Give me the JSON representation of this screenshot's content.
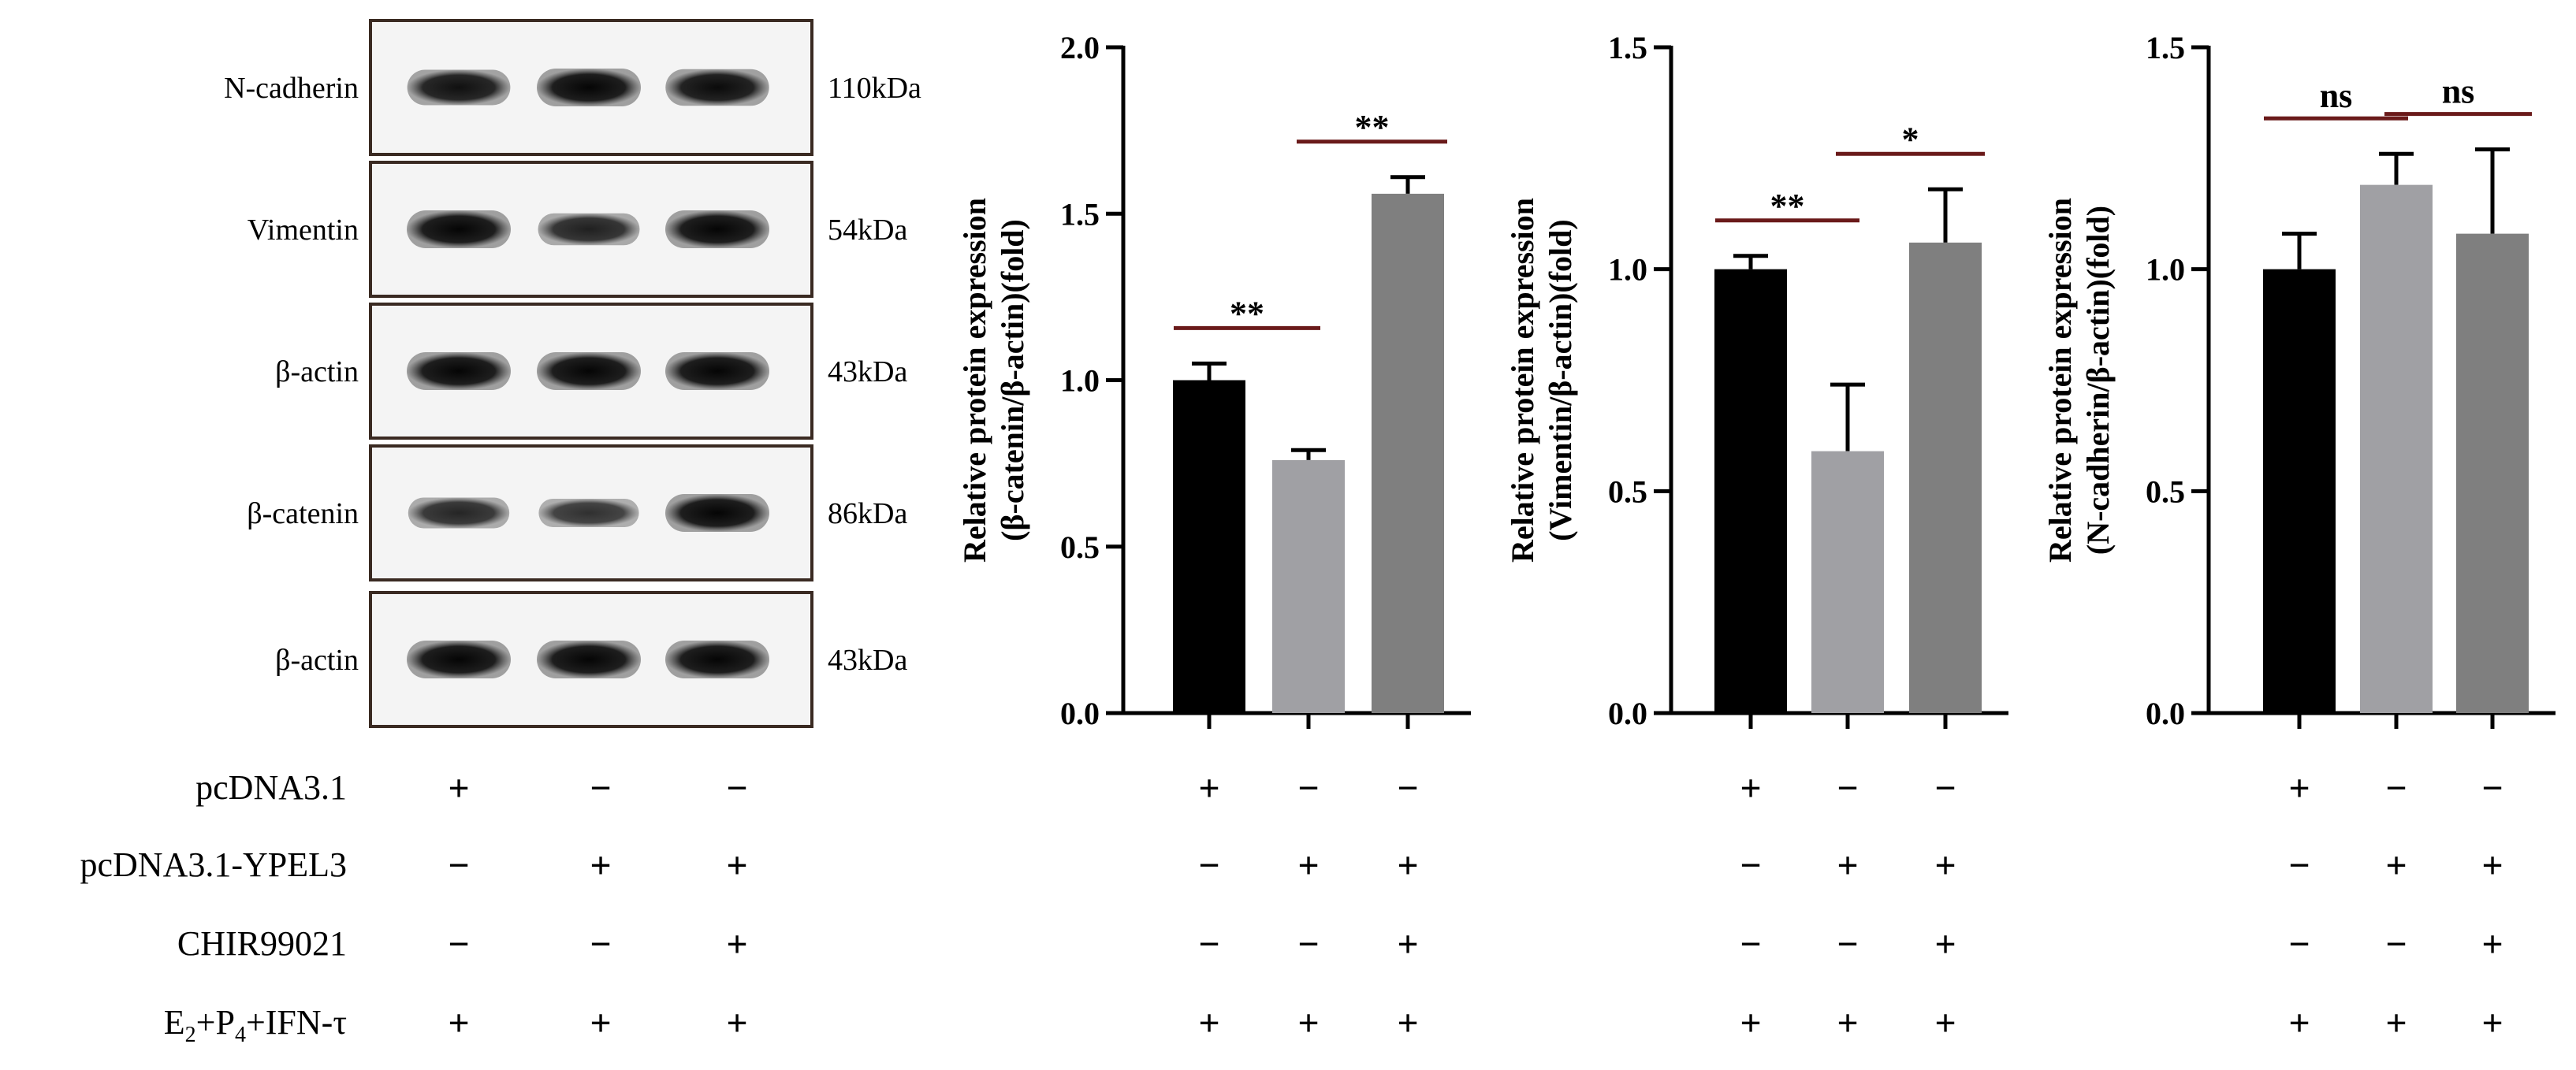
{
  "blot": {
    "rows": [
      {
        "name": "N-cadherin",
        "kda": "110kDa",
        "intensity": [
          0.9,
          1.0,
          0.95
        ]
      },
      {
        "name": "Vimentin",
        "kda": "54kDa",
        "intensity": [
          1.0,
          0.75,
          1.0
        ]
      },
      {
        "name": "β-actin",
        "kda": "43kDa",
        "intensity": [
          1.0,
          1.0,
          1.0
        ]
      },
      {
        "name": "β-catenin",
        "kda": "86kDa",
        "intensity": [
          0.7,
          0.6,
          1.0
        ]
      },
      {
        "name": "β-actin",
        "kda": "43kDa",
        "intensity": [
          1.0,
          1.0,
          1.0
        ]
      }
    ]
  },
  "conditions": [
    {
      "label": "pcDNA3.1",
      "signs": [
        "+",
        "−",
        "−"
      ]
    },
    {
      "label": "pcDNA3.1-YPEL3",
      "signs": [
        "−",
        "+",
        "+"
      ]
    },
    {
      "label": "CHIR99021",
      "signs": [
        "−",
        "−",
        "+"
      ]
    },
    {
      "label_parts": [
        "E",
        "2",
        "+P",
        "4",
        "+IFN-τ"
      ],
      "signs": [
        "+",
        "+",
        "+"
      ]
    }
  ],
  "chart_data": [
    {
      "type": "bar",
      "categories": [
        "pcDNA3.1",
        "pcDNA3.1-YPEL3",
        "pcDNA3.1-YPEL3 + CHIR99021"
      ],
      "values": [
        1.0,
        0.76,
        1.56
      ],
      "errors": [
        0.05,
        0.03,
        0.05
      ],
      "colors": [
        "#000000",
        "#a0a0a4",
        "#7f7f7f"
      ],
      "ylabel_line1": "Relative protein expression",
      "ylabel_line2": "(β-catenin/β-actin)(fold)",
      "ylim": [
        0,
        2.0
      ],
      "yticks": [
        "0.0",
        "0.5",
        "1.0",
        "1.5",
        "2.0"
      ],
      "significance": [
        {
          "from": 0,
          "to": 1,
          "label": "**"
        },
        {
          "from": 1,
          "to": 2,
          "label": "**"
        }
      ]
    },
    {
      "type": "bar",
      "categories": [
        "pcDNA3.1",
        "pcDNA3.1-YPEL3",
        "pcDNA3.1-YPEL3 + CHIR99021"
      ],
      "values": [
        1.0,
        0.59,
        1.06
      ],
      "errors": [
        0.03,
        0.15,
        0.12
      ],
      "colors": [
        "#000000",
        "#a0a0a4",
        "#7f7f7f"
      ],
      "ylabel_line1": "Relative protein expression",
      "ylabel_line2": "(Vimentin/β-actin)(fold)",
      "ylim": [
        0,
        1.5
      ],
      "yticks": [
        "0.0",
        "0.5",
        "1.0",
        "1.5"
      ],
      "significance": [
        {
          "from": 0,
          "to": 1,
          "label": "**"
        },
        {
          "from": 1,
          "to": 2,
          "label": "*"
        }
      ]
    },
    {
      "type": "bar",
      "categories": [
        "pcDNA3.1",
        "pcDNA3.1-YPEL3",
        "pcDNA3.1-YPEL3 + CHIR99021"
      ],
      "values": [
        1.0,
        1.19,
        1.08
      ],
      "errors": [
        0.08,
        0.07,
        0.19
      ],
      "colors": [
        "#000000",
        "#a0a0a4",
        "#7f7f7f"
      ],
      "ylabel_line1": "Relative protein expression",
      "ylabel_line2": "(N-cadherin/β-actin)(fold)",
      "ylim": [
        0,
        1.5
      ],
      "yticks": [
        "0.0",
        "0.5",
        "1.0",
        "1.5"
      ],
      "significance": [
        {
          "from": 0,
          "to": 1,
          "label": "ns"
        },
        {
          "from": 1,
          "to": 2,
          "label": "ns"
        }
      ]
    }
  ]
}
